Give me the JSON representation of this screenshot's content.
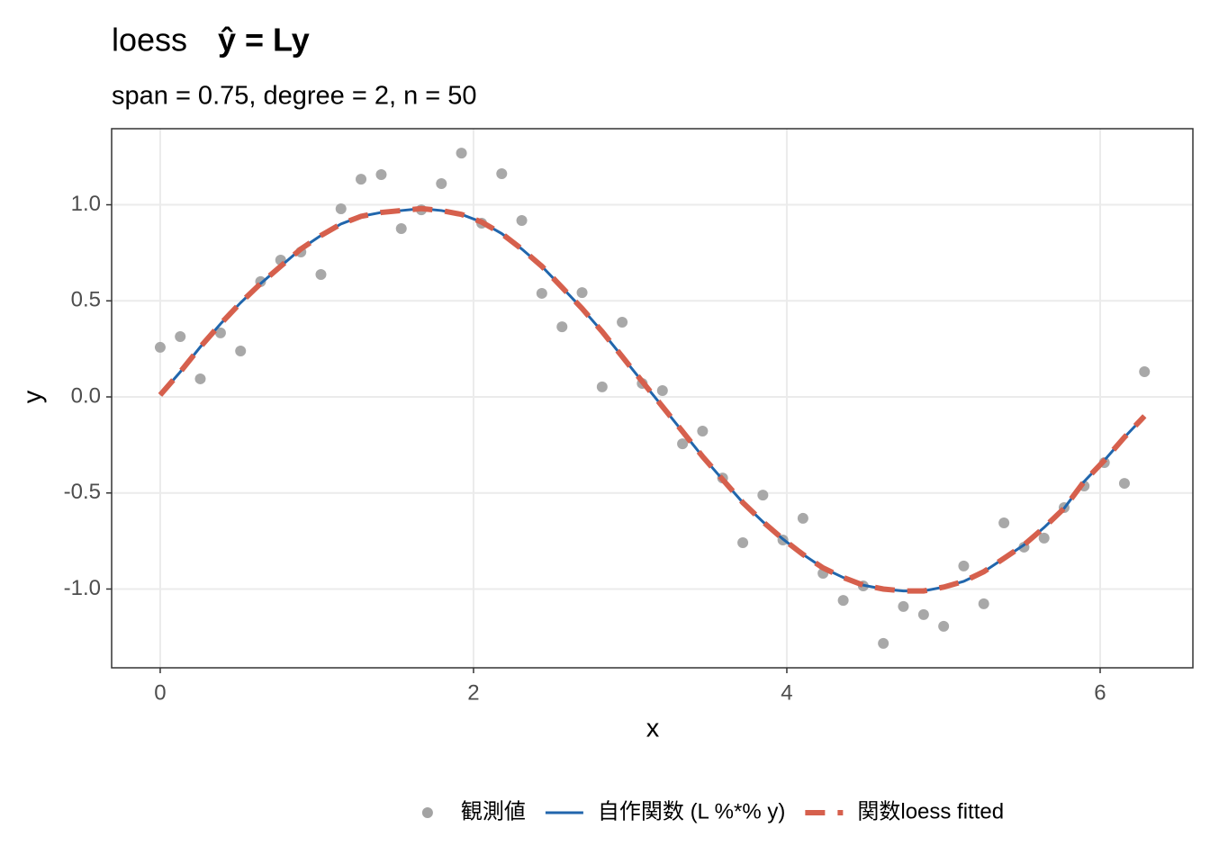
{
  "chart_data": {
    "type": "line",
    "title": "loess",
    "title_formula": "ŷ = Ly",
    "subtitle": "span = 0.75,  degree = 2,  n = 50",
    "x_label": "x",
    "y_label": "y",
    "x": [
      0,
      0.128,
      0.256,
      0.385,
      0.513,
      0.641,
      0.769,
      0.898,
      1.026,
      1.154,
      1.282,
      1.411,
      1.539,
      1.667,
      1.795,
      1.923,
      2.052,
      2.18,
      2.308,
      2.436,
      2.565,
      2.693,
      2.821,
      2.949,
      3.077,
      3.206,
      3.334,
      3.462,
      3.59,
      3.719,
      3.847,
      3.975,
      4.103,
      4.231,
      4.36,
      4.488,
      4.616,
      4.744,
      4.873,
      5.001,
      5.129,
      5.257,
      5.386,
      5.514,
      5.642,
      5.77,
      5.898,
      6.027,
      6.155,
      6.283
    ],
    "series": [
      {
        "name": "観測値",
        "type": "scatter",
        "color": "#a3a3a3",
        "values": [
          0.258,
          0.314,
          0.094,
          0.333,
          0.239,
          0.6,
          0.712,
          0.754,
          0.637,
          0.979,
          1.133,
          1.157,
          0.876,
          0.974,
          1.11,
          1.269,
          0.904,
          1.162,
          0.918,
          0.539,
          0.365,
          0.543,
          0.052,
          0.389,
          0.07,
          0.033,
          -0.244,
          -0.178,
          -0.422,
          -0.759,
          -0.511,
          -0.745,
          -0.632,
          -0.918,
          -1.059,
          -0.984,
          -1.283,
          -1.091,
          -1.133,
          -1.194,
          -0.88,
          -1.077,
          -0.656,
          -0.782,
          -0.735,
          -0.576,
          -0.464,
          -0.342,
          -0.45,
          0.131
        ]
      },
      {
        "name": "自作関数  (L %*% y)",
        "type": "line",
        "dash": false,
        "color": "#2166ac",
        "values": [
          0.01,
          0.13,
          0.26,
          0.38,
          0.49,
          0.59,
          0.68,
          0.77,
          0.84,
          0.9,
          0.94,
          0.96,
          0.97,
          0.98,
          0.97,
          0.95,
          0.91,
          0.85,
          0.77,
          0.68,
          0.57,
          0.46,
          0.34,
          0.21,
          0.08,
          -0.05,
          -0.18,
          -0.31,
          -0.43,
          -0.55,
          -0.65,
          -0.74,
          -0.82,
          -0.89,
          -0.94,
          -0.98,
          -1.0,
          -1.01,
          -1.01,
          -0.99,
          -0.96,
          -0.91,
          -0.84,
          -0.77,
          -0.68,
          -0.58,
          -0.44,
          -0.33,
          -0.21,
          -0.1
        ]
      },
      {
        "name": "関数loess fitted",
        "type": "line",
        "dash": true,
        "color": "#d6604d",
        "values": [
          0.01,
          0.13,
          0.26,
          0.38,
          0.49,
          0.59,
          0.68,
          0.77,
          0.84,
          0.9,
          0.94,
          0.96,
          0.97,
          0.98,
          0.97,
          0.95,
          0.91,
          0.85,
          0.77,
          0.68,
          0.57,
          0.46,
          0.34,
          0.21,
          0.08,
          -0.05,
          -0.18,
          -0.31,
          -0.43,
          -0.55,
          -0.65,
          -0.74,
          -0.82,
          -0.89,
          -0.94,
          -0.98,
          -1.0,
          -1.01,
          -1.01,
          -0.99,
          -0.96,
          -0.91,
          -0.84,
          -0.77,
          -0.68,
          -0.58,
          -0.44,
          -0.33,
          -0.21,
          -0.1
        ]
      }
    ],
    "xlim": [
      -0.31,
      6.592
    ],
    "ylim": [
      -1.41,
      1.396
    ],
    "xticks": [
      0,
      2,
      4,
      6
    ],
    "yticks": [
      {
        "value": -1,
        "label": "-1.0"
      },
      -0.5,
      {
        "value": 0,
        "label": "0.0"
      },
      0.5,
      {
        "value": 1,
        "label": "1.0"
      }
    ],
    "grid": true,
    "legend": "bottom"
  }
}
